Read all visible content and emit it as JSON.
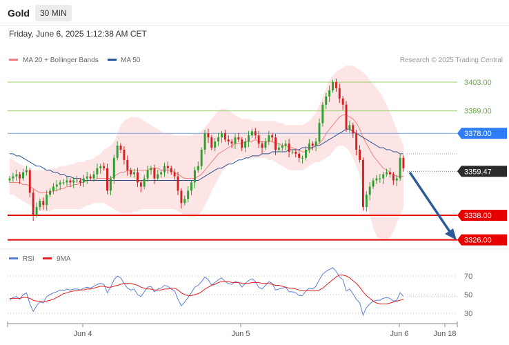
{
  "header": {
    "instrument": "Gold",
    "timeframe": "30 MIN",
    "datetime": "Friday, June 6, 2025 1:12:38 AM CET"
  },
  "main_chart": {
    "legend": [
      {
        "label": "MA 20 + Bollinger Bands",
        "color": "#f08080"
      },
      {
        "label": "MA 50",
        "color": "#2a5391"
      }
    ],
    "credit": "Research © 2025 Trading Central",
    "current_price": "3359.47",
    "levels": [
      {
        "label": "3403.00",
        "value": 3403.0,
        "style": "green-line"
      },
      {
        "label": "3389.00",
        "value": 3389.0,
        "style": "green-line"
      },
      {
        "label": "3378.00",
        "value": 3378.0,
        "style": "blue-tag"
      },
      {
        "label": "3338.00",
        "value": 3338.0,
        "style": "red-tag"
      },
      {
        "label": "3326.00",
        "value": 3326.0,
        "style": "red-tag"
      }
    ]
  },
  "rsi_panel": {
    "legend": [
      {
        "label": "RSI",
        "color": "#5b7fd6"
      },
      {
        "label": "9MA",
        "color": "#e02020"
      }
    ],
    "ticks": [
      "70",
      "50",
      "30"
    ]
  },
  "x_axis": {
    "labels": [
      "Jun 4",
      "Jun 5",
      "Jun 6",
      "Jun 18"
    ]
  },
  "chart_data": {
    "type": "candlestick",
    "y_axis_labels": [
      "3403.00",
      "3389.00",
      "3378.00",
      "3359.47",
      "3338.00",
      "3326.00"
    ],
    "x_axis_labels": [
      "Jun 4",
      "Jun 5",
      "Jun 6",
      "Jun 18"
    ],
    "close": [
      3356,
      3357,
      3358,
      3356,
      3359,
      3360,
      3349,
      3338,
      3342,
      3345,
      3343,
      3348,
      3350,
      3352,
      3353,
      3354,
      3354,
      3355,
      3354,
      3355,
      3355,
      3354,
      3356,
      3357,
      3356,
      3358,
      3361,
      3362,
      3361,
      3350,
      3356,
      3366,
      3372,
      3370,
      3365,
      3360,
      3358,
      3359,
      3354,
      3352,
      3356,
      3360,
      3361,
      3356,
      3358,
      3359,
      3362,
      3361,
      3359,
      3357,
      3350,
      3344,
      3346,
      3350,
      3354,
      3360,
      3362,
      3370,
      3378,
      3376,
      3371,
      3374,
      3376,
      3378,
      3375,
      3374,
      3373,
      3376,
      3375,
      3371,
      3374,
      3377,
      3379,
      3377,
      3373,
      3371,
      3374,
      3377,
      3376,
      3370,
      3371,
      3372,
      3373,
      3369,
      3369,
      3368,
      3366,
      3366,
      3370,
      3373,
      3372,
      3374,
      3383,
      3392,
      3396,
      3399,
      3403,
      3400,
      3395,
      3392,
      3380,
      3382,
      3378,
      3370,
      3365,
      3342,
      3348,
      3352,
      3355,
      3356,
      3356,
      3358,
      3359,
      3358,
      3355,
      3356,
      3366,
      3361
    ],
    "ma20": [
      3354,
      3354,
      3354,
      3354,
      3353,
      3353,
      3352,
      3351,
      3350,
      3349,
      3349,
      3349,
      3349,
      3350,
      3350,
      3351,
      3351,
      3352,
      3352,
      3353,
      3353,
      3354,
      3354,
      3355,
      3355,
      3355,
      3356,
      3356,
      3356,
      3356,
      3356,
      3357,
      3358,
      3359,
      3359,
      3360,
      3360,
      3360,
      3360,
      3360,
      3360,
      3360,
      3361,
      3361,
      3361,
      3360,
      3360,
      3360,
      3360,
      3359,
      3358,
      3357,
      3356,
      3356,
      3356,
      3356,
      3357,
      3358,
      3360,
      3362,
      3364,
      3366,
      3368,
      3369,
      3370,
      3371,
      3372,
      3373,
      3373,
      3373,
      3374,
      3374,
      3374,
      3375,
      3374,
      3374,
      3374,
      3374,
      3374,
      3373,
      3373,
      3372,
      3372,
      3371,
      3371,
      3370,
      3370,
      3369,
      3369,
      3370,
      3371,
      3372,
      3373,
      3375,
      3378,
      3380,
      3382,
      3384,
      3386,
      3387,
      3387,
      3386,
      3385,
      3383,
      3380,
      3376,
      3373,
      3370,
      3367,
      3365,
      3363,
      3361,
      3360,
      3359,
      3358,
      3357,
      3357,
      3357
    ],
    "ma50": [
      3368,
      3368,
      3367,
      3367,
      3366,
      3365,
      3364,
      3363,
      3362,
      3362,
      3361,
      3360,
      3360,
      3359,
      3359,
      3358,
      3358,
      3357,
      3357,
      3356,
      3356,
      3356,
      3355,
      3355,
      3355,
      3355,
      3355,
      3355,
      3355,
      3355,
      3355,
      3355,
      3355,
      3355,
      3355,
      3355,
      3355,
      3355,
      3355,
      3355,
      3355,
      3355,
      3355,
      3355,
      3355,
      3355,
      3355,
      3355,
      3355,
      3355,
      3355,
      3355,
      3355,
      3355,
      3355,
      3355,
      3355,
      3356,
      3357,
      3358,
      3359,
      3360,
      3361,
      3361,
      3362,
      3363,
      3363,
      3364,
      3365,
      3365,
      3366,
      3366,
      3367,
      3367,
      3367,
      3368,
      3368,
      3368,
      3369,
      3369,
      3369,
      3369,
      3369,
      3370,
      3370,
      3370,
      3370,
      3371,
      3371,
      3371,
      3371,
      3372,
      3372,
      3373,
      3374,
      3375,
      3376,
      3377,
      3378,
      3379,
      3380,
      3380,
      3379,
      3378,
      3377,
      3376,
      3375,
      3374,
      3373,
      3372,
      3371,
      3371,
      3370,
      3370,
      3369,
      3369,
      3368,
      3368
    ],
    "bb_upper": [
      3366,
      3365,
      3364,
      3363,
      3362,
      3361,
      3360,
      3360,
      3360,
      3360,
      3360,
      3360,
      3361,
      3361,
      3361,
      3362,
      3362,
      3362,
      3363,
      3363,
      3364,
      3364,
      3364,
      3365,
      3365,
      3366,
      3367,
      3368,
      3370,
      3371,
      3372,
      3374,
      3378,
      3382,
      3384,
      3385,
      3386,
      3386,
      3386,
      3385,
      3384,
      3383,
      3382,
      3381,
      3380,
      3379,
      3378,
      3378,
      3378,
      3377,
      3377,
      3377,
      3377,
      3377,
      3377,
      3378,
      3378,
      3379,
      3381,
      3383,
      3385,
      3387,
      3389,
      3390,
      3390,
      3389,
      3388,
      3387,
      3386,
      3385,
      3385,
      3385,
      3384,
      3384,
      3384,
      3384,
      3384,
      3384,
      3384,
      3384,
      3383,
      3383,
      3382,
      3382,
      3382,
      3382,
      3382,
      3382,
      3383,
      3384,
      3386,
      3388,
      3392,
      3396,
      3400,
      3404,
      3406,
      3408,
      3409,
      3410,
      3411,
      3411,
      3411,
      3410,
      3409,
      3408,
      3406,
      3404,
      3402,
      3400,
      3398,
      3395,
      3392,
      3388,
      3384,
      3380,
      3376,
      3372
    ],
    "bb_lower": [
      3348,
      3348,
      3347,
      3346,
      3345,
      3344,
      3343,
      3342,
      3341,
      3340,
      3340,
      3340,
      3340,
      3341,
      3341,
      3341,
      3341,
      3341,
      3341,
      3341,
      3341,
      3341,
      3342,
      3343,
      3343,
      3344,
      3344,
      3344,
      3344,
      3343,
      3342,
      3341,
      3340,
      3339,
      3339,
      3339,
      3339,
      3340,
      3340,
      3341,
      3341,
      3341,
      3341,
      3341,
      3341,
      3341,
      3341,
      3341,
      3341,
      3341,
      3340,
      3339,
      3338,
      3337,
      3337,
      3337,
      3338,
      3340,
      3343,
      3346,
      3350,
      3353,
      3356,
      3359,
      3361,
      3363,
      3364,
      3365,
      3366,
      3366,
      3366,
      3366,
      3366,
      3366,
      3366,
      3366,
      3366,
      3365,
      3365,
      3364,
      3363,
      3362,
      3361,
      3360,
      3360,
      3360,
      3360,
      3360,
      3361,
      3362,
      3363,
      3364,
      3364,
      3365,
      3366,
      3367,
      3369,
      3371,
      3372,
      3372,
      3371,
      3369,
      3366,
      3362,
      3357,
      3350,
      3344,
      3338,
      3332,
      3328,
      3326,
      3326,
      3326,
      3327,
      3330,
      3334,
      3338,
      3342
    ],
    "rsi": [
      44,
      47,
      48,
      45,
      50,
      52,
      40,
      32,
      38,
      42,
      41,
      48,
      50,
      52,
      53,
      55,
      54,
      56,
      55,
      56,
      56,
      55,
      57,
      58,
      57,
      59,
      61,
      62,
      61,
      52,
      58,
      66,
      70,
      68,
      62,
      57,
      55,
      56,
      50,
      48,
      53,
      58,
      59,
      53,
      56,
      57,
      60,
      59,
      56,
      54,
      45,
      38,
      42,
      47,
      52,
      58,
      60,
      64,
      69,
      66,
      60,
      63,
      66,
      68,
      64,
      62,
      61,
      64,
      63,
      58,
      62,
      65,
      67,
      64,
      58,
      56,
      60,
      64,
      62,
      55,
      56,
      57,
      58,
      53,
      53,
      52,
      49,
      49,
      54,
      57,
      56,
      59,
      66,
      72,
      75,
      77,
      79,
      75,
      69,
      66,
      54,
      56,
      51,
      45,
      41,
      28,
      36,
      40,
      43,
      44,
      44,
      46,
      47,
      46,
      43,
      44,
      52,
      48
    ],
    "rsi_ma9": [
      46,
      46,
      46,
      46,
      47,
      47,
      46,
      44,
      43,
      43,
      42,
      43,
      44,
      45,
      47,
      49,
      51,
      52,
      53,
      54,
      54,
      55,
      55,
      56,
      56,
      57,
      58,
      59,
      59,
      58,
      58,
      59,
      60,
      61,
      62,
      62,
      62,
      61,
      60,
      58,
      57,
      56,
      56,
      55,
      55,
      55,
      56,
      56,
      57,
      57,
      55,
      52,
      50,
      49,
      49,
      50,
      51,
      53,
      56,
      58,
      60,
      61,
      63,
      64,
      64,
      64,
      63,
      63,
      63,
      62,
      62,
      62,
      63,
      63,
      63,
      62,
      62,
      62,
      61,
      60,
      60,
      59,
      58,
      57,
      57,
      56,
      55,
      54,
      54,
      54,
      54,
      54,
      55,
      57,
      60,
      63,
      66,
      69,
      71,
      71,
      70,
      68,
      65,
      62,
      58,
      53,
      49,
      46,
      43,
      41,
      40,
      40,
      40,
      41,
      42,
      43,
      44,
      45
    ]
  }
}
